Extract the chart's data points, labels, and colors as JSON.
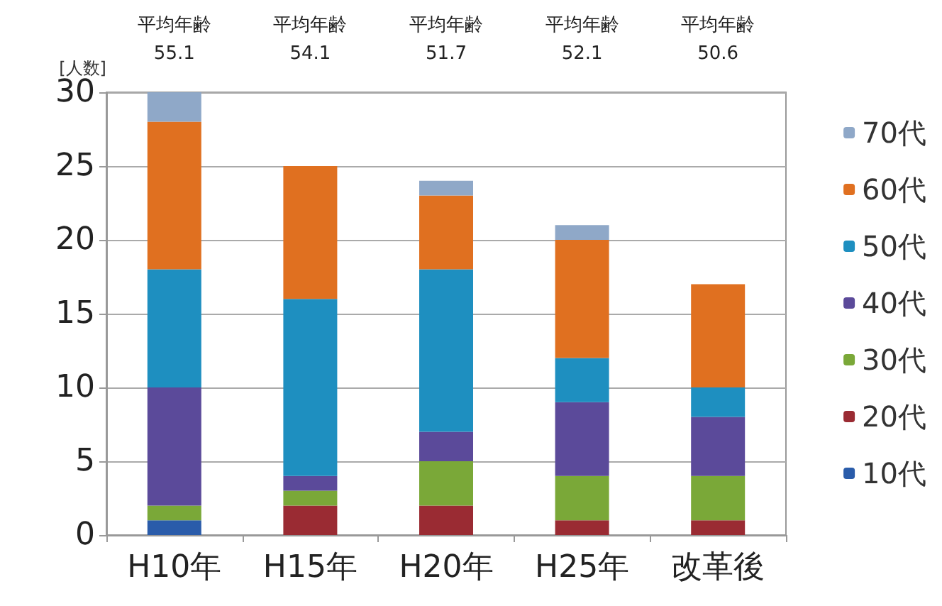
{
  "chart_data": {
    "type": "bar",
    "stacked": true,
    "ylabel": "[人数]",
    "categories": [
      "H10年",
      "H15年",
      "H20年",
      "H25年",
      "改革後"
    ],
    "series": [
      {
        "name": "10代",
        "color": "#2a5caa",
        "values": [
          1,
          0,
          0,
          0,
          0
        ]
      },
      {
        "name": "20代",
        "color": "#9a2b33",
        "values": [
          0,
          2,
          2,
          1,
          1
        ]
      },
      {
        "name": "30代",
        "color": "#7aa838",
        "values": [
          1,
          1,
          3,
          3,
          3
        ]
      },
      {
        "name": "40代",
        "color": "#5b4a9a",
        "values": [
          8,
          1,
          2,
          5,
          4
        ]
      },
      {
        "name": "50代",
        "color": "#1e8fc0",
        "values": [
          8,
          12,
          11,
          3,
          2
        ]
      },
      {
        "name": "60代",
        "color": "#e07020",
        "values": [
          10,
          9,
          5,
          8,
          7
        ]
      },
      {
        "name": "70代",
        "color": "#8fa8c8",
        "values": [
          2,
          0,
          1,
          1,
          0
        ]
      }
    ],
    "ylim": [
      0,
      30
    ],
    "yticks": [
      0,
      5,
      10,
      15,
      20,
      25,
      30
    ],
    "grid": "y",
    "legend": "right",
    "annotations": [
      "平均年齢\n55.1",
      "平均年齢\n54.1",
      "平均年齢\n51.7",
      "平均年齢\n52.1",
      "平均年齢\n50.6"
    ]
  }
}
